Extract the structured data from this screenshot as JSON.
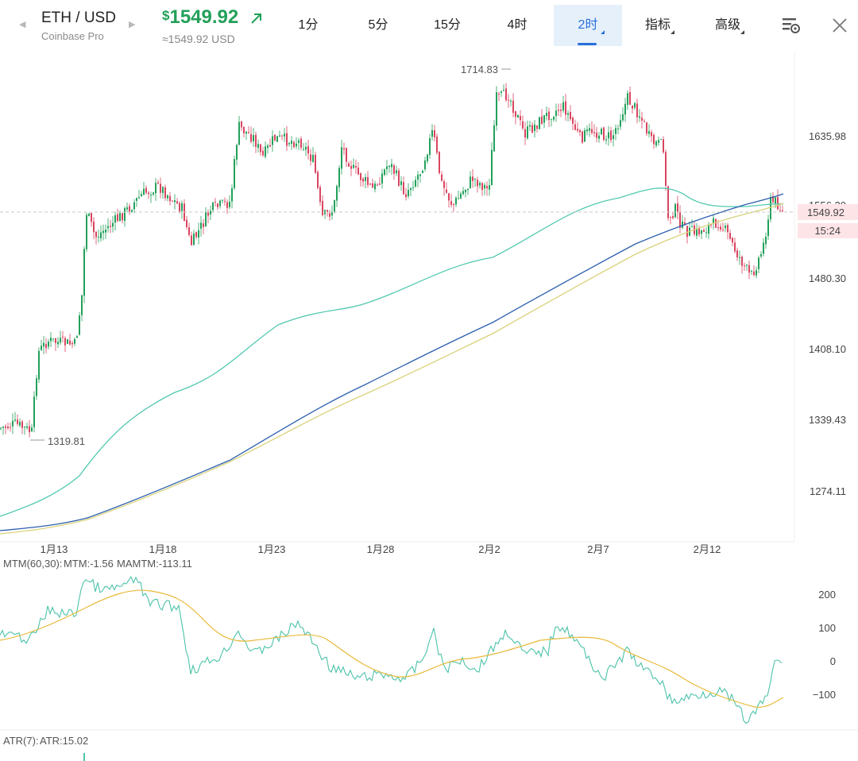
{
  "header": {
    "pair": "ETH / USD",
    "exchange": "Coinbase Pro",
    "currency_symbol": "$",
    "price": "1549.92",
    "price_converted": "≈1549.92 USD",
    "prev_arrow": "◀",
    "next_arrow": "▶"
  },
  "tabs": [
    {
      "label": "1分",
      "active": false,
      "has_menu": false
    },
    {
      "label": "5分",
      "active": false,
      "has_menu": false
    },
    {
      "label": "15分",
      "active": false,
      "has_menu": false
    },
    {
      "label": "4时",
      "active": false,
      "has_menu": false
    },
    {
      "label": "2时",
      "active": true,
      "has_menu": true
    },
    {
      "label": "指标",
      "active": false,
      "has_menu": true
    },
    {
      "label": "高级",
      "active": false,
      "has_menu": true
    }
  ],
  "tools": [
    {
      "icon": "chart-settings-icon"
    },
    {
      "icon": "close-icon"
    }
  ],
  "colors": {
    "up": "#23a05a",
    "down": "#d9455f",
    "ma_teal": "#52c9b0",
    "ma_blue": "#2c5fae",
    "ma_yellow": "#d9d27a",
    "mtm": "#4cc2aa",
    "mamtm": "#e8b93a",
    "accent": "#2a6fd6"
  },
  "price_chart": {
    "y_axis_labels": [
      "1635.98",
      "1556.20",
      "1480.30",
      "1408.10",
      "1339.43",
      "1274.11"
    ],
    "current_price": "1549.92",
    "countdown": "15:24",
    "high_label": "1714.83",
    "low_label": "1319.81",
    "x_axis_labels": [
      "1月13",
      "1月18",
      "1月23",
      "1月28",
      "2月2",
      "2月7",
      "2月12"
    ]
  },
  "mtm_panel": {
    "title": "MTM(60,30):",
    "mtm": "MTM:-1.56",
    "mamtm": "MAMTM:-113.11",
    "y_axis_labels": [
      "200",
      "100",
      "0",
      "−100"
    ]
  },
  "atr_panel": {
    "title": "ATR(7):",
    "atr": "ATR:15.02"
  }
}
